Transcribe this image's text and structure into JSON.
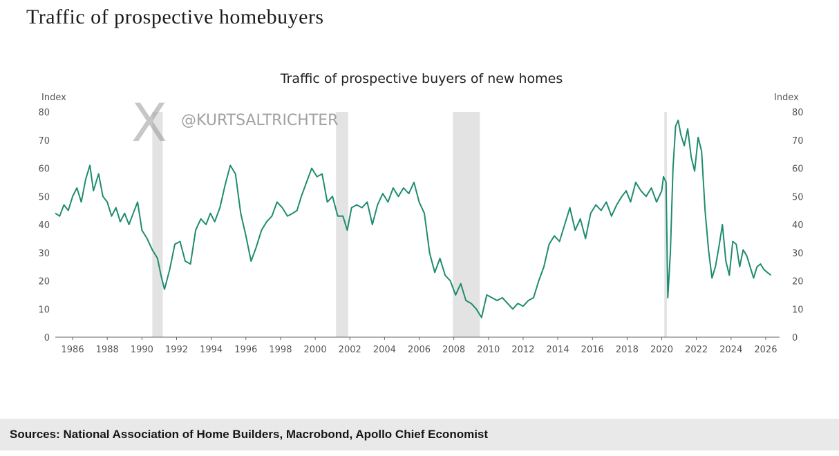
{
  "page": {
    "title": "Traffic of prospective homebuyers",
    "source": "Sources: National Association of Home Builders, Macrobond, Apollo Chief Economist",
    "watermark_logo": "X",
    "watermark_handle": "@KURTSALTRICHTER"
  },
  "chart_data": {
    "type": "line",
    "title": "Traffic of prospective buyers of new homes",
    "ylabel_left": "Index",
    "ylabel_right": "Index",
    "xlim": [
      1985.0,
      2026.8
    ],
    "ylim": [
      0,
      80
    ],
    "yticks": [
      0,
      10,
      20,
      30,
      40,
      50,
      60,
      70,
      80
    ],
    "xticks": [
      "1986",
      "1988",
      "1990",
      "1992",
      "1994",
      "1996",
      "1998",
      "2000",
      "2002",
      "2004",
      "2006",
      "2008",
      "2010",
      "2012",
      "2014",
      "2016",
      "2018",
      "2020",
      "2022",
      "2024",
      "2026"
    ],
    "grid": false,
    "series_color": "#1e8c6f",
    "recession_color": "#e3e3e3",
    "recessions": [
      [
        1990.6,
        1991.2
      ],
      [
        2001.2,
        2001.9
      ],
      [
        2007.95,
        2009.5
      ],
      [
        2020.15,
        2020.3
      ]
    ],
    "series": [
      {
        "x": [
          1985.0,
          1985.25,
          1985.5,
          1985.75,
          1986.0,
          1986.25,
          1986.5,
          1986.75,
          1987.0,
          1987.2,
          1987.5,
          1987.75,
          1988.0,
          1988.25,
          1988.5,
          1988.75,
          1989.0,
          1989.25,
          1989.5,
          1989.75,
          1990.0,
          1990.3,
          1990.6,
          1990.9,
          1991.1,
          1991.3,
          1991.6,
          1991.9,
          1992.2,
          1992.5,
          1992.8,
          1993.1,
          1993.4,
          1993.7,
          1993.95,
          1994.2,
          1994.5,
          1994.8,
          1995.1,
          1995.4,
          1995.7,
          1996.0,
          1996.3,
          1996.6,
          1996.9,
          1997.2,
          1997.5,
          1997.8,
          1998.1,
          1998.4,
          1998.7,
          1998.95,
          1999.2,
          1999.5,
          1999.8,
          2000.1,
          2000.4,
          2000.7,
          2001.0,
          2001.3,
          2001.6,
          2001.85,
          2002.1,
          2002.4,
          2002.7,
          2003.0,
          2003.3,
          2003.6,
          2003.9,
          2004.2,
          2004.5,
          2004.8,
          2005.1,
          2005.4,
          2005.7,
          2006.0,
          2006.3,
          2006.6,
          2006.9,
          2007.2,
          2007.5,
          2007.8,
          2008.1,
          2008.4,
          2008.7,
          2009.0,
          2009.3,
          2009.6,
          2009.9,
          2010.2,
          2010.5,
          2010.8,
          2011.1,
          2011.4,
          2011.7,
          2012.0,
          2012.3,
          2012.6,
          2012.9,
          2013.2,
          2013.5,
          2013.8,
          2014.1,
          2014.4,
          2014.7,
          2015.0,
          2015.3,
          2015.6,
          2015.9,
          2016.2,
          2016.5,
          2016.8,
          2017.1,
          2017.4,
          2017.7,
          2017.95,
          2018.2,
          2018.5,
          2018.8,
          2019.1,
          2019.4,
          2019.7,
          2020.0,
          2020.1,
          2020.25,
          2020.35,
          2020.5,
          2020.65,
          2020.8,
          2020.95,
          2021.1,
          2021.3,
          2021.5,
          2021.7,
          2021.9,
          2022.1,
          2022.3,
          2022.5,
          2022.7,
          2022.9,
          2023.1,
          2023.3,
          2023.5,
          2023.7,
          2023.9,
          2024.1,
          2024.3,
          2024.5,
          2024.7,
          2024.9,
          2025.1,
          2025.3,
          2025.5,
          2025.7,
          2025.9,
          2026.1,
          2026.3
        ],
        "values": [
          44,
          43,
          47,
          45,
          50,
          53,
          48,
          56,
          61,
          52,
          58,
          50,
          48,
          43,
          46,
          41,
          44,
          40,
          44,
          48,
          38,
          35,
          31,
          28,
          22,
          17,
          24,
          33,
          34,
          27,
          26,
          38,
          42,
          40,
          44,
          41,
          46,
          54,
          61,
          58,
          44,
          36,
          27,
          32,
          38,
          41,
          43,
          48,
          46,
          43,
          44,
          45,
          50,
          55,
          60,
          57,
          58,
          48,
          50,
          43,
          43,
          38,
          46,
          47,
          46,
          48,
          40,
          47,
          51,
          48,
          53,
          50,
          53,
          51,
          55,
          48,
          44,
          30,
          23,
          28,
          22,
          20,
          15,
          19,
          13,
          12,
          10,
          7,
          15,
          14,
          13,
          14,
          12,
          10,
          12,
          11,
          13,
          14,
          20,
          25,
          33,
          36,
          34,
          40,
          46,
          38,
          42,
          35,
          44,
          47,
          45,
          48,
          43,
          47,
          50,
          52,
          48,
          55,
          52,
          50,
          53,
          48,
          52,
          57,
          55,
          14,
          30,
          60,
          75,
          77,
          72,
          68,
          74,
          64,
          59,
          71,
          66,
          45,
          31,
          21,
          25,
          32,
          40,
          27,
          22,
          34,
          33,
          25,
          31,
          29,
          25,
          21,
          25,
          26,
          24,
          23,
          22
        ]
      }
    ]
  }
}
